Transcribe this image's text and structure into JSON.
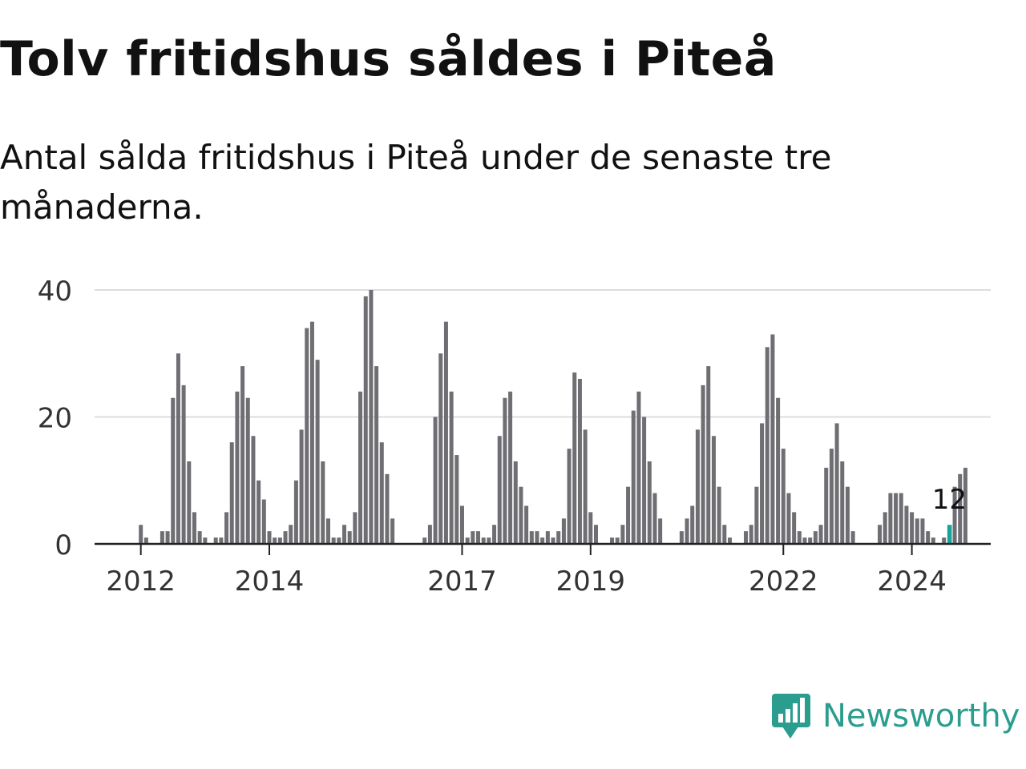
{
  "title": "Tolv fritidshus såldes i Piteå",
  "subtitle": "Antal sålda fritidshus i Piteå under de senaste tre månaderna.",
  "brand": {
    "name": "Newsworthy",
    "color": "#2a9d8f"
  },
  "colors": {
    "bar": "#6e6e73",
    "highlight": "#16a39a",
    "grid": "#dddddd",
    "axis": "#222222"
  },
  "chart_data": {
    "type": "bar",
    "title": "Tolv fritidshus såldes i Piteå",
    "ylabel": "",
    "xlabel": "",
    "ylim": [
      0,
      40
    ],
    "yticks": [
      "0",
      "20",
      "40"
    ],
    "xticks": [
      {
        "label": "2012",
        "index": 1
      },
      {
        "label": "2014",
        "index": 25
      },
      {
        "label": "2017",
        "index": 61
      },
      {
        "label": "2019",
        "index": 85
      },
      {
        "label": "2022",
        "index": 121
      },
      {
        "label": "2024",
        "index": 145
      }
    ],
    "highlight_index": 152,
    "highlight_label": "12",
    "values": [
      0,
      3,
      1,
      0,
      0,
      2,
      2,
      23,
      30,
      25,
      13,
      5,
      2,
      1,
      0,
      1,
      1,
      5,
      16,
      24,
      28,
      23,
      17,
      10,
      7,
      2,
      1,
      1,
      2,
      3,
      10,
      18,
      34,
      35,
      29,
      13,
      4,
      1,
      1,
      3,
      2,
      5,
      24,
      39,
      40,
      28,
      16,
      11,
      4,
      0,
      0,
      0,
      0,
      0,
      1,
      3,
      20,
      30,
      35,
      24,
      14,
      6,
      1,
      2,
      2,
      1,
      1,
      3,
      17,
      23,
      24,
      13,
      9,
      6,
      2,
      2,
      1,
      2,
      1,
      2,
      4,
      15,
      27,
      26,
      18,
      5,
      3,
      0,
      0,
      1,
      1,
      3,
      9,
      21,
      24,
      20,
      13,
      8,
      4,
      0,
      0,
      0,
      2,
      4,
      6,
      18,
      25,
      28,
      17,
      9,
      3,
      1,
      0,
      0,
      2,
      3,
      9,
      19,
      31,
      33,
      23,
      15,
      8,
      5,
      2,
      1,
      1,
      2,
      3,
      12,
      15,
      19,
      13,
      9,
      2,
      0,
      0,
      0,
      0,
      3,
      5,
      8,
      8,
      8,
      6,
      5,
      4,
      4,
      2,
      1,
      0,
      1,
      3,
      9,
      11,
      12
    ]
  }
}
